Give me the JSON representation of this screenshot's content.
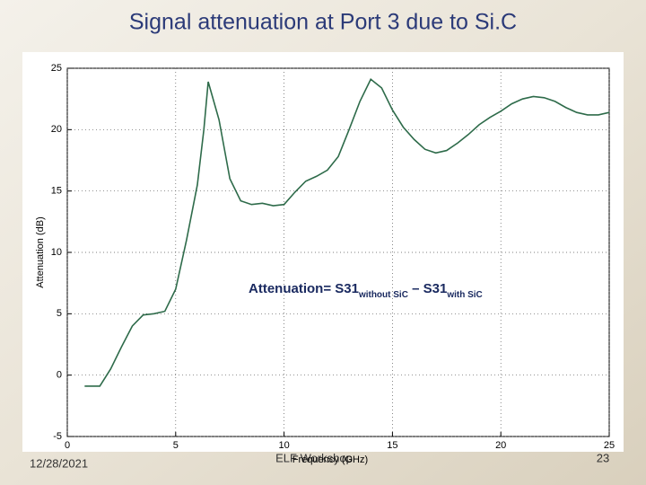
{
  "slide": {
    "title": "Signal attenuation at Port 3 due to Si.C",
    "date": "12/28/2021",
    "footer": "ELF Workshop",
    "page_number": "23"
  },
  "chart_data": {
    "type": "line",
    "x_label": "Frequency (GHz)",
    "y_label": "Attenuation (dB)",
    "annotation": [
      "Attenuation= S31",
      "without SiC",
      " – S31",
      "with SiC"
    ],
    "x": [
      0.8,
      1.5,
      2,
      2.5,
      3,
      3.5,
      4,
      4.5,
      5,
      5.5,
      6,
      6.3,
      6.5,
      7,
      7.5,
      8,
      8.5,
      9,
      9.5,
      10,
      10.5,
      11,
      11.5,
      12,
      12.5,
      13,
      13.5,
      14,
      14.5,
      15,
      15.5,
      16,
      16.5,
      17,
      17.5,
      18,
      18.5,
      19,
      19.5,
      20,
      20.5,
      21,
      21.5,
      22,
      22.5,
      23,
      23.5,
      24,
      24.5,
      25
    ],
    "values": [
      -0.9,
      -0.9,
      0.5,
      2.3,
      4,
      4.9,
      5,
      5.2,
      7,
      11,
      15.5,
      20,
      23.9,
      20.8,
      16,
      14.2,
      13.9,
      14,
      13.8,
      13.9,
      14.9,
      15.8,
      16.2,
      16.7,
      17.8,
      20,
      22.3,
      24.1,
      23.4,
      21.6,
      20.2,
      19.2,
      18.4,
      18.1,
      18.3,
      18.9,
      19.6,
      20.4,
      21,
      21.5,
      22.1,
      22.5,
      22.7,
      22.6,
      22.3,
      21.8,
      21.4,
      21.2,
      21.2,
      21.4
    ],
    "color": "#2e6b4a",
    "xlim": [
      0,
      25
    ],
    "ylim": [
      -5,
      25
    ],
    "xticks": [
      0,
      5,
      10,
      15,
      20,
      25
    ],
    "yticks": [
      -5,
      0,
      5,
      10,
      15,
      20,
      25
    ],
    "grid": true
  }
}
